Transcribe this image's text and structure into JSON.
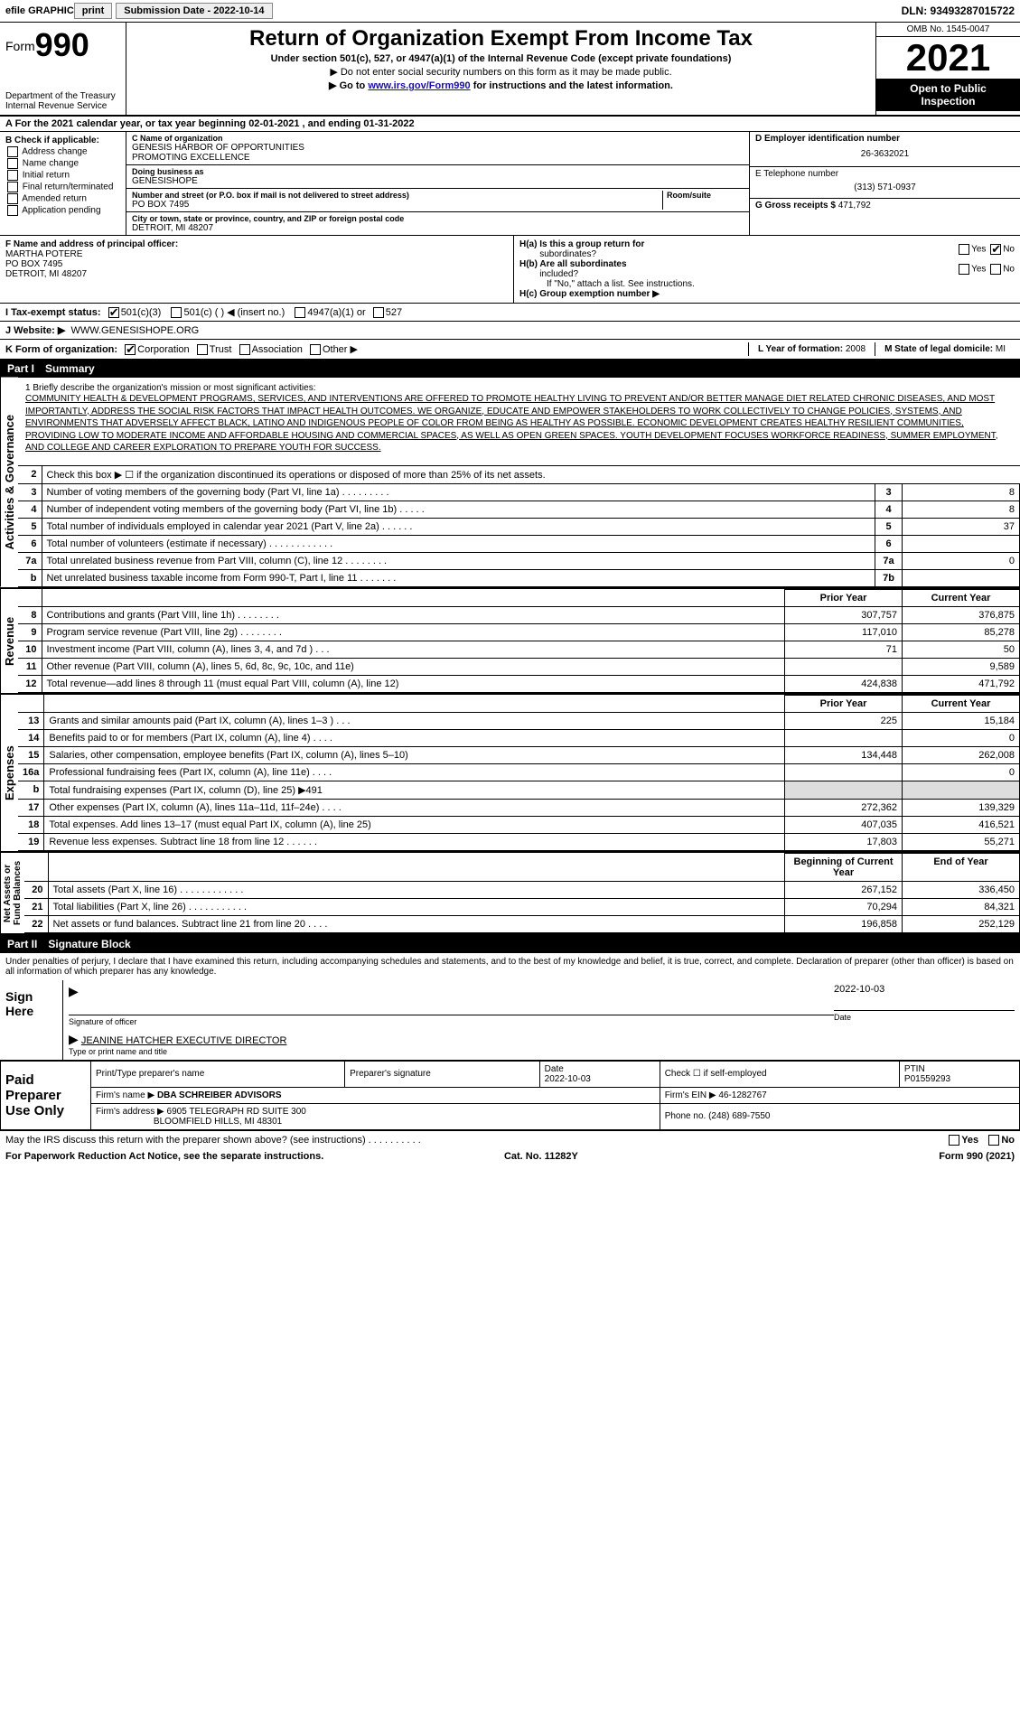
{
  "topbar": {
    "efile_label": "efile GRAPHIC",
    "print_btn": "print",
    "subdate_label": "Submission Date - 2022-10-14",
    "dln": "DLN: 93493287015722"
  },
  "header": {
    "form_prefix": "Form",
    "form_number": "990",
    "dept": "Department of the Treasury",
    "irs": "Internal Revenue Service",
    "title": "Return of Organization Exempt From Income Tax",
    "sub1": "Under section 501(c), 527, or 4947(a)(1) of the Internal Revenue Code (except private foundations)",
    "sub2": "▶ Do not enter social security numbers on this form as it may be made public.",
    "sub3_prefix": "▶ Go to ",
    "sub3_link": "www.irs.gov/Form990",
    "sub3_suffix": " for instructions and the latest information.",
    "omb": "OMB No. 1545-0047",
    "year": "2021",
    "inspect1": "Open to Public",
    "inspect2": "Inspection"
  },
  "row_a": "A For the 2021 calendar year, or tax year beginning 02-01-2021   , and ending 01-31-2022",
  "col_b": {
    "title": "B Check if applicable:",
    "items": [
      "Address change",
      "Name change",
      "Initial return",
      "Final return/terminated",
      "Amended return",
      "Application pending"
    ]
  },
  "col_c": {
    "c_label": "C Name of organization",
    "c_val1": "GENESIS HARBOR OF OPPORTUNITIES",
    "c_val2": "PROMOTING EXCELLENCE",
    "dba_label": "Doing business as",
    "dba_val": "GENESISHOPE",
    "addr_label": "Number and street (or P.O. box if mail is not delivered to street address)",
    "addr_val": "PO BOX 7495",
    "room_label": "Room/suite",
    "city_label": "City or town, state or province, country, and ZIP or foreign postal code",
    "city_val": "DETROIT, MI  48207"
  },
  "col_right": {
    "d_label": "D Employer identification number",
    "d_val": "26-3632021",
    "e_label": "E Telephone number",
    "e_val": "(313) 571-0937",
    "g_label": "G Gross receipts $",
    "g_val": "471,792"
  },
  "row_f": {
    "f_label": "F  Name and address of principal officer:",
    "f_name": "MARTHA POTERE",
    "f_addr1": "PO BOX 7495",
    "f_addr2": "DETROIT, MI  48207",
    "ha_label": "H(a)  Is this a group return for",
    "ha_sub": "subordinates?",
    "hb_label": "H(b)  Are all subordinates",
    "hb_sub": "included?",
    "hb_note": "If \"No,\" attach a list. See instructions.",
    "hc_label": "H(c)  Group exemption number ▶",
    "yes": "Yes",
    "no": "No"
  },
  "row_i": {
    "label": "I   Tax-exempt status:",
    "opts": [
      "501(c)(3)",
      "501(c) (  ) ◀ (insert no.)",
      "4947(a)(1) or",
      "527"
    ]
  },
  "row_j": {
    "label": "J   Website: ▶",
    "val": "WWW.GENESISHOPE.ORG"
  },
  "row_k": {
    "label": "K Form of organization:",
    "opts": [
      "Corporation",
      "Trust",
      "Association",
      "Other ▶"
    ],
    "l_label": "L Year of formation:",
    "l_val": "2008",
    "m_label": "M State of legal domicile:",
    "m_val": "MI"
  },
  "part1": {
    "num": "Part I",
    "title": "Summary"
  },
  "mission": {
    "line1_label": "1   Briefly describe the organization's mission or most significant activities:",
    "text": "COMMUNITY HEALTH & DEVELOPMENT PROGRAMS, SERVICES, AND INTERVENTIONS ARE OFFERED TO PROMOTE HEALTHY LIVING TO PREVENT AND/OR BETTER MANAGE DIET RELATED CHRONIC DISEASES, AND MOST IMPORTANTLY, ADDRESS THE SOCIAL RISK FACTORS THAT IMPACT HEALTH OUTCOMES. WE ORGANIZE, EDUCATE AND EMPOWER STAKEHOLDERS TO WORK COLLECTIVELY TO CHANGE POLICIES, SYSTEMS, AND ENVIRONMENTS THAT ADVERSELY AFFECT BLACK, LATINO AND INDIGENOUS PEOPLE OF COLOR FROM BEING AS HEALTHY AS POSSIBLE. ECONOMIC DEVELOPMENT CREATES HEALTHY RESILIENT COMMUNITIES, PROVIDING LOW TO MODERATE INCOME AND AFFORDABLE HOUSING AND COMMERCIAL SPACES, AS WELL AS OPEN GREEN SPACES. YOUTH DEVELOPMENT FOCUSES WORKFORCE READINESS, SUMMER EMPLOYMENT, AND COLLEGE AND CAREER EXPLORATION TO PREPARE YOUTH FOR SUCCESS."
  },
  "activities_label": "Activities & Governance",
  "act_lines": [
    {
      "n": "2",
      "d": "Check this box ▶ ☐  if the organization discontinued its operations or disposed of more than 25% of its net assets.",
      "b": "",
      "v": ""
    },
    {
      "n": "3",
      "d": "Number of voting members of the governing body (Part VI, line 1a)  .    .    .    .    .    .    .    .    .",
      "b": "3",
      "v": "8"
    },
    {
      "n": "4",
      "d": "Number of independent voting members of the governing body (Part VI, line 1b)   .    .    .    .    .",
      "b": "4",
      "v": "8"
    },
    {
      "n": "5",
      "d": "Total number of individuals employed in calendar year 2021 (Part V, line 2a)   .    .    .    .    .    .",
      "b": "5",
      "v": "37"
    },
    {
      "n": "6",
      "d": "Total number of volunteers (estimate if necessary)  .    .    .    .    .    .    .    .    .    .    .    .",
      "b": "6",
      "v": ""
    },
    {
      "n": "7a",
      "d": "Total unrelated business revenue from Part VIII, column (C), line 12  .    .    .    .    .    .    .    .",
      "b": "7a",
      "v": "0"
    },
    {
      "n": "b",
      "d": "Net unrelated business taxable income from Form 990-T, Part I, line 11  .    .    .    .    .    .    .",
      "b": "7b",
      "v": ""
    }
  ],
  "revenue_label": "Revenue",
  "rev_hdr": {
    "prior": "Prior Year",
    "curr": "Current Year"
  },
  "rev_lines": [
    {
      "n": "8",
      "d": "Contributions and grants (Part VIII, line 1h)  .   .   .   .   .   .   .   .",
      "p": "307,757",
      "c": "376,875"
    },
    {
      "n": "9",
      "d": "Program service revenue (Part VIII, line 2g)  .   .   .   .   .   .   .   .",
      "p": "117,010",
      "c": "85,278"
    },
    {
      "n": "10",
      "d": "Investment income (Part VIII, column (A), lines 3, 4, and 7d )  .   .   .",
      "p": "71",
      "c": "50"
    },
    {
      "n": "11",
      "d": "Other revenue (Part VIII, column (A), lines 5, 6d, 8c, 9c, 10c, and 11e)",
      "p": "",
      "c": "9,589"
    },
    {
      "n": "12",
      "d": "Total revenue—add lines 8 through 11 (must equal Part VIII, column (A), line 12)",
      "p": "424,838",
      "c": "471,792"
    }
  ],
  "expenses_label": "Expenses",
  "exp_lines": [
    {
      "n": "13",
      "d": "Grants and similar amounts paid (Part IX, column (A), lines 1–3 )  .   .   .",
      "p": "225",
      "c": "15,184"
    },
    {
      "n": "14",
      "d": "Benefits paid to or for members (Part IX, column (A), line 4)  .   .   .   .",
      "p": "",
      "c": "0"
    },
    {
      "n": "15",
      "d": "Salaries, other compensation, employee benefits (Part IX, column (A), lines 5–10)",
      "p": "134,448",
      "c": "262,008"
    },
    {
      "n": "16a",
      "d": "Professional fundraising fees (Part IX, column (A), line 11e)  .   .   .   .",
      "p": "",
      "c": "0"
    },
    {
      "n": "b",
      "d": "Total fundraising expenses (Part IX, column (D), line 25) ▶491",
      "p": "shade",
      "c": "shade"
    },
    {
      "n": "17",
      "d": "Other expenses (Part IX, column (A), lines 11a–11d, 11f–24e)  .   .   .   .",
      "p": "272,362",
      "c": "139,329"
    },
    {
      "n": "18",
      "d": "Total expenses. Add lines 13–17 (must equal Part IX, column (A), line 25)",
      "p": "407,035",
      "c": "416,521"
    },
    {
      "n": "19",
      "d": "Revenue less expenses. Subtract line 18 from line 12  .   .   .   .   .   .",
      "p": "17,803",
      "c": "55,271"
    }
  ],
  "net_label": "Net Assets or\nFund Balances",
  "net_hdr": {
    "prior": "Beginning of Current Year",
    "curr": "End of Year"
  },
  "net_lines": [
    {
      "n": "20",
      "d": "Total assets (Part X, line 16)  .   .   .   .   .   .   .   .   .   .   .   .",
      "p": "267,152",
      "c": "336,450"
    },
    {
      "n": "21",
      "d": "Total liabilities (Part X, line 26)  .   .   .   .   .   .   .   .   .   .   .",
      "p": "70,294",
      "c": "84,321"
    },
    {
      "n": "22",
      "d": "Net assets or fund balances. Subtract line 21 from line 20  .   .   .   .",
      "p": "196,858",
      "c": "252,129"
    }
  ],
  "part2": {
    "num": "Part II",
    "title": "Signature Block"
  },
  "sig": {
    "penalty": "Under penalties of perjury, I declare that I have examined this return, including accompanying schedules and statements, and to the best of my knowledge and belief, it is true, correct, and complete. Declaration of preparer (other than officer) is based on all information of which preparer has any knowledge.",
    "sign_here": "Sign Here",
    "sig_officer": "Signature of officer",
    "date": "Date",
    "date_val": "2022-10-03",
    "name_val": "JEANINE HATCHER  EXECUTIVE DIRECTOR",
    "name_label": "Type or print name and title"
  },
  "paid": {
    "title": "Paid Preparer Use Only",
    "h1": "Print/Type preparer's name",
    "h2": "Preparer's signature",
    "h3": "Date",
    "h3v": "2022-10-03",
    "h4": "Check ☐ if self-employed",
    "h5": "PTIN",
    "h5v": "P01559293",
    "firm_label": "Firm's name    ▶",
    "firm_val": "DBA SCHREIBER ADVISORS",
    "ein_label": "Firm's EIN ▶",
    "ein_val": "46-1282767",
    "addr_label": "Firm's address ▶",
    "addr_val1": "6905 TELEGRAPH RD SUITE 300",
    "addr_val2": "BLOOMFIELD HILLS, MI  48301",
    "phone_label": "Phone no.",
    "phone_val": "(248) 689-7550"
  },
  "footer": {
    "discuss": "May the IRS discuss this return with the preparer shown above? (see instructions)  .   .   .   .   .   .   .   .   .   .",
    "yes": "Yes",
    "no": "No",
    "pra": "For Paperwork Reduction Act Notice, see the separate instructions.",
    "cat": "Cat. No. 11282Y",
    "form": "Form 990 (2021)"
  }
}
